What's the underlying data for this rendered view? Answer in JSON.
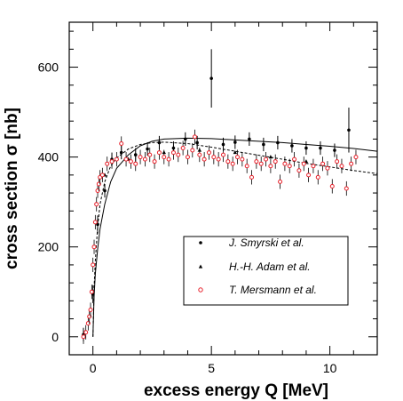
{
  "chart_data": {
    "type": "scatter",
    "title": "",
    "xlabel": "excess energy Q [MeV]",
    "ylabel": "cross section σ [nb]",
    "xlim": [
      -1,
      12
    ],
    "ylim": [
      -40,
      700
    ],
    "x_ticks": [
      0,
      5,
      10
    ],
    "y_ticks": [
      0,
      200,
      400,
      600
    ],
    "grid": false,
    "legend_position": "lower-right",
    "colors": {
      "mersmann": "#e8202a",
      "axes": "#000000"
    },
    "series": [
      {
        "name": "J. Smyrski et al.",
        "marker": "dot",
        "points": [
          {
            "x": -0.4,
            "y": 5,
            "err": 15
          },
          {
            "x": 0.0,
            "y": 95,
            "err": 20
          },
          {
            "x": 0.2,
            "y": 250,
            "err": 20
          },
          {
            "x": 0.5,
            "y": 325,
            "err": 15
          },
          {
            "x": 0.8,
            "y": 395,
            "err": 15
          },
          {
            "x": 1.2,
            "y": 410,
            "err": 15
          },
          {
            "x": 1.8,
            "y": 405,
            "err": 15
          },
          {
            "x": 2.3,
            "y": 418,
            "err": 15
          },
          {
            "x": 2.8,
            "y": 432,
            "err": 15
          },
          {
            "x": 3.4,
            "y": 420,
            "err": 15
          },
          {
            "x": 3.9,
            "y": 440,
            "err": 15
          },
          {
            "x": 4.4,
            "y": 432,
            "err": 15
          },
          {
            "x": 5.0,
            "y": 575,
            "err": 65
          },
          {
            "x": 5.5,
            "y": 428,
            "err": 15
          },
          {
            "x": 6.0,
            "y": 433,
            "err": 15
          },
          {
            "x": 6.6,
            "y": 440,
            "err": 15
          },
          {
            "x": 7.2,
            "y": 428,
            "err": 15
          },
          {
            "x": 7.8,
            "y": 432,
            "err": 15
          },
          {
            "x": 8.4,
            "y": 425,
            "err": 15
          },
          {
            "x": 9.0,
            "y": 420,
            "err": 15
          },
          {
            "x": 9.6,
            "y": 420,
            "err": 15
          },
          {
            "x": 10.2,
            "y": 415,
            "err": 15
          },
          {
            "x": 10.8,
            "y": 460,
            "err": 50
          }
        ]
      },
      {
        "name": "H.-H. Adam et al.",
        "marker": "triangle",
        "points": [
          {
            "x": 0.5,
            "y": 360
          },
          {
            "x": 1.5,
            "y": 395
          },
          {
            "x": 3.0,
            "y": 410
          },
          {
            "x": 4.5,
            "y": 415
          },
          {
            "x": 6.0,
            "y": 410
          },
          {
            "x": 7.5,
            "y": 400
          },
          {
            "x": 9.0,
            "y": 390
          }
        ]
      },
      {
        "name": "T. Mersmann et al.",
        "marker": "open-circle",
        "points": [
          {
            "x": -0.4,
            "y": 0
          },
          {
            "x": -0.3,
            "y": 10
          },
          {
            "x": -0.2,
            "y": 30
          },
          {
            "x": -0.15,
            "y": 45
          },
          {
            "x": -0.1,
            "y": 60
          },
          {
            "x": -0.05,
            "y": 100
          },
          {
            "x": 0.0,
            "y": 160
          },
          {
            "x": 0.05,
            "y": 200
          },
          {
            "x": 0.1,
            "y": 255
          },
          {
            "x": 0.15,
            "y": 295
          },
          {
            "x": 0.2,
            "y": 325
          },
          {
            "x": 0.25,
            "y": 340
          },
          {
            "x": 0.3,
            "y": 355
          },
          {
            "x": 0.4,
            "y": 360
          },
          {
            "x": 0.6,
            "y": 385
          },
          {
            "x": 0.8,
            "y": 390
          },
          {
            "x": 1.0,
            "y": 395
          },
          {
            "x": 1.2,
            "y": 430
          },
          {
            "x": 1.4,
            "y": 395
          },
          {
            "x": 1.6,
            "y": 390
          },
          {
            "x": 1.8,
            "y": 385
          },
          {
            "x": 2.0,
            "y": 400
          },
          {
            "x": 2.2,
            "y": 395
          },
          {
            "x": 2.4,
            "y": 405
          },
          {
            "x": 2.6,
            "y": 390
          },
          {
            "x": 2.8,
            "y": 410
          },
          {
            "x": 3.0,
            "y": 400
          },
          {
            "x": 3.2,
            "y": 395
          },
          {
            "x": 3.4,
            "y": 410
          },
          {
            "x": 3.6,
            "y": 405
          },
          {
            "x": 3.8,
            "y": 420
          },
          {
            "x": 4.0,
            "y": 400
          },
          {
            "x": 4.2,
            "y": 415
          },
          {
            "x": 4.3,
            "y": 445
          },
          {
            "x": 4.5,
            "y": 405
          },
          {
            "x": 4.7,
            "y": 395
          },
          {
            "x": 4.9,
            "y": 410
          },
          {
            "x": 5.1,
            "y": 400
          },
          {
            "x": 5.3,
            "y": 395
          },
          {
            "x": 5.5,
            "y": 405
          },
          {
            "x": 5.7,
            "y": 390
          },
          {
            "x": 5.9,
            "y": 385
          },
          {
            "x": 6.1,
            "y": 400
          },
          {
            "x": 6.3,
            "y": 395
          },
          {
            "x": 6.5,
            "y": 380
          },
          {
            "x": 6.7,
            "y": 355
          },
          {
            "x": 6.9,
            "y": 390
          },
          {
            "x": 7.1,
            "y": 385
          },
          {
            "x": 7.3,
            "y": 395
          },
          {
            "x": 7.5,
            "y": 380
          },
          {
            "x": 7.7,
            "y": 390
          },
          {
            "x": 7.9,
            "y": 345
          },
          {
            "x": 8.1,
            "y": 385
          },
          {
            "x": 8.3,
            "y": 380
          },
          {
            "x": 8.5,
            "y": 395
          },
          {
            "x": 8.7,
            "y": 370
          },
          {
            "x": 8.9,
            "y": 385
          },
          {
            "x": 9.1,
            "y": 360
          },
          {
            "x": 9.3,
            "y": 380
          },
          {
            "x": 9.5,
            "y": 355
          },
          {
            "x": 9.7,
            "y": 385
          },
          {
            "x": 9.9,
            "y": 375
          },
          {
            "x": 10.1,
            "y": 335
          },
          {
            "x": 10.3,
            "y": 390
          },
          {
            "x": 10.5,
            "y": 380
          },
          {
            "x": 10.7,
            "y": 330
          },
          {
            "x": 10.9,
            "y": 385
          },
          {
            "x": 11.1,
            "y": 400
          }
        ]
      }
    ],
    "curves": [
      {
        "style": "solid",
        "x": [
          0,
          0.05,
          0.1,
          0.2,
          0.3,
          0.5,
          0.75,
          1,
          1.5,
          2,
          2.5,
          3,
          4,
          5,
          6,
          7,
          8,
          9,
          10,
          11,
          12
        ],
        "y": [
          0,
          90,
          140,
          195,
          240,
          295,
          345,
          375,
          405,
          425,
          435,
          440,
          442,
          441,
          438,
          435,
          432,
          428,
          424,
          419,
          413
        ]
      },
      {
        "style": "dashed",
        "x": [
          0,
          0.05,
          0.1,
          0.2,
          0.3,
          0.5,
          0.75,
          1,
          1.5,
          2,
          2.5,
          3,
          4,
          5,
          6,
          7,
          8,
          9,
          10,
          11,
          12
        ],
        "y": [
          0,
          110,
          170,
          245,
          295,
          345,
          380,
          398,
          418,
          428,
          432,
          433,
          430,
          422,
          413,
          404,
          395,
          386,
          378,
          370,
          363
        ]
      }
    ]
  }
}
